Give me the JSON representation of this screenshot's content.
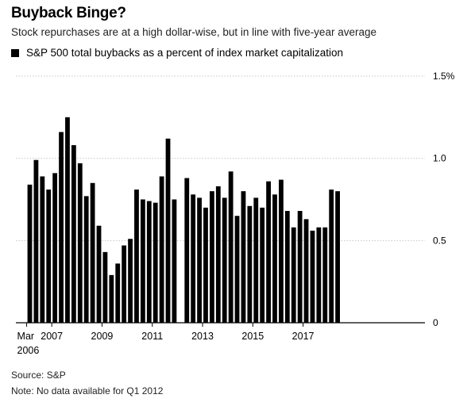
{
  "header": {
    "title": "Buyback Binge?",
    "subtitle": "Stock repurchases are at a high dollar-wise, but in line with five-year average"
  },
  "legend": {
    "label": "S&P 500 total buybacks as a percent of index market capitalization"
  },
  "footer": {
    "source": "Source: S&P",
    "note": "Note: No data available for Q1 2012"
  },
  "chart_data": {
    "type": "bar",
    "title": "Buyback Binge?",
    "subtitle": "Stock repurchases are at a high dollar-wise, but in line with five-year average",
    "color": "#000000",
    "grid": true,
    "ylim": [
      0,
      1.5
    ],
    "y_ticks": [
      "0",
      "0.5",
      "1.0",
      "1.5%"
    ],
    "y_tick_values": [
      0,
      0.5,
      1.0,
      1.5
    ],
    "x_tick_labels": [
      {
        "label": "Mar",
        "sublabel": "2006",
        "index": 0
      },
      {
        "label": "2007",
        "index": 4
      },
      {
        "label": "2009",
        "index": 12
      },
      {
        "label": "2011",
        "index": 20
      },
      {
        "label": "2013",
        "index": 28
      },
      {
        "label": "2015",
        "index": 36
      },
      {
        "label": "2017",
        "index": 44
      }
    ],
    "series": [
      {
        "name": "S&P 500 total buybacks as a percent of index market capitalization",
        "values": [
          0.84,
          0.99,
          0.89,
          0.81,
          0.91,
          1.16,
          1.25,
          1.08,
          0.97,
          0.77,
          0.85,
          0.59,
          0.43,
          0.29,
          0.36,
          0.47,
          0.51,
          0.81,
          0.75,
          0.74,
          0.73,
          0.89,
          1.12,
          0.75,
          null,
          0.88,
          0.78,
          0.76,
          0.7,
          0.8,
          0.83,
          0.76,
          0.92,
          0.65,
          0.8,
          0.71,
          0.76,
          0.7,
          0.86,
          0.78,
          0.87,
          0.68,
          0.58,
          0.68,
          0.63,
          0.56,
          0.58,
          0.58,
          0.81,
          0.8
        ]
      }
    ]
  }
}
